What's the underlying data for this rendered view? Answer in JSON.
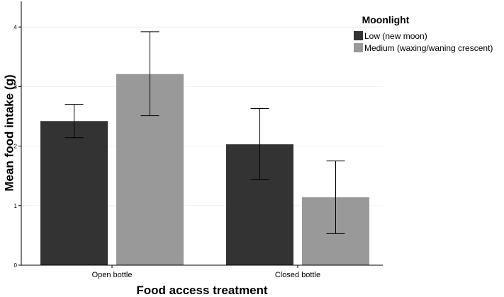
{
  "chart_data": {
    "type": "bar",
    "categories": [
      "Open bottle",
      "Closed bottle"
    ],
    "series": [
      {
        "name": "Low (new moon)",
        "color": "#333333",
        "values": [
          2.42,
          2.03
        ],
        "error_low": [
          2.14,
          1.44
        ],
        "error_high": [
          2.7,
          2.63
        ]
      },
      {
        "name": "Medium (waxing/waning crescent)",
        "color": "#999999",
        "values": [
          3.21,
          1.14
        ],
        "error_low": [
          2.51,
          0.53
        ],
        "error_high": [
          3.92,
          1.75
        ]
      }
    ],
    "xlabel": "Food access treatment",
    "ylabel": "Mean food intake (g)",
    "ylim": [
      0,
      4.4
    ],
    "yticks": [
      0,
      1,
      2,
      3,
      4
    ],
    "ytick_labels": [
      "0",
      "1",
      "2",
      "3",
      "4"
    ],
    "grid": true,
    "legend": {
      "title": "Moonlight",
      "position": "top-right"
    }
  }
}
